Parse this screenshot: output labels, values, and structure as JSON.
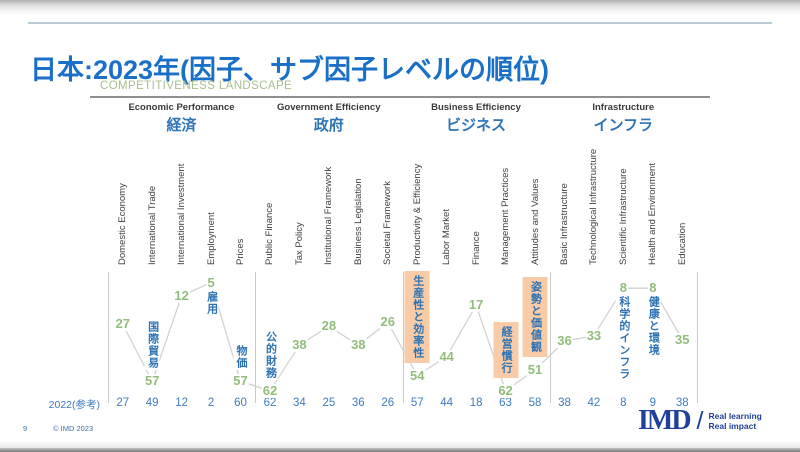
{
  "slide": {
    "title": "日本:2023年(因子、サブ因子レベルの順位)"
  },
  "chart": {
    "heading": "COMPETITIVENESS LANDSCAPE",
    "reference_row_label": "2022(参考)"
  },
  "footer": {
    "page_number": "9",
    "copyright": "© IMD 2023",
    "logo_text": "IMD",
    "logo_slash": "/",
    "tagline_line1": "Real learning",
    "tagline_line2": "Real impact"
  },
  "colors": {
    "title_blue": "#1A70C7",
    "annotation_blue": "#2E74B5",
    "value_green": "#92BD7A",
    "reference_blue": "#3E7CC1",
    "highlight_orange": "#F9CBA6",
    "line_gray": "#D2D2D2",
    "heading_green": "#A8C08C",
    "logo_blue": "#1F419B"
  },
  "chart_data": {
    "type": "line",
    "title": "COMPETITIVENESS LANDSCAPE",
    "y_axis": "world competitiveness ranking (lower = better); axis inverted, no ticks shown",
    "legend_position": "none",
    "grid": false,
    "series": [
      {
        "name": "2023",
        "style": "gray line with green rank labels at each point"
      },
      {
        "name": "2022(参考)",
        "style": "blue reference values listed in bottom row"
      }
    ],
    "sections": [
      {
        "name_en": "Economic Performance",
        "name_ja": "経済",
        "subfactors": [
          {
            "label": "Domestic Economy",
            "rank_2023": 27,
            "rank_2022": 27
          },
          {
            "label": "International Trade",
            "rank_2023": 57,
            "rank_2022": 49,
            "annotation_ja": "国際貿易",
            "annotation_pos": "above",
            "highlight": false
          },
          {
            "label": "International Investment",
            "rank_2023": 12,
            "rank_2022": 12
          },
          {
            "label": "Employment",
            "rank_2023": 5,
            "rank_2022": 2,
            "annotation_ja": "雇用",
            "annotation_pos": "below",
            "highlight": false
          },
          {
            "label": "Prices",
            "rank_2023": 57,
            "rank_2022": 60,
            "annotation_ja": "物価",
            "annotation_pos": "above",
            "highlight": false
          }
        ]
      },
      {
        "name_en": "Government Efficiency",
        "name_ja": "政府",
        "subfactors": [
          {
            "label": "Public Finance",
            "rank_2023": 62,
            "rank_2022": 62,
            "annotation_ja": "公的財務",
            "annotation_pos": "above",
            "highlight": false
          },
          {
            "label": "Tax Policy",
            "rank_2023": 38,
            "rank_2022": 34
          },
          {
            "label": "Institutional Framework",
            "rank_2023": 28,
            "rank_2022": 25
          },
          {
            "label": "Business Legislation",
            "rank_2023": 38,
            "rank_2022": 36
          },
          {
            "label": "Societal Framework",
            "rank_2023": 26,
            "rank_2022": 26
          }
        ]
      },
      {
        "name_en": "Business Efficiency",
        "name_ja": "ビジネス",
        "subfactors": [
          {
            "label": "Productivity & Efficiency",
            "rank_2023": 54,
            "rank_2022": 57,
            "annotation_ja": "生産性と効率性",
            "annotation_pos": "above",
            "highlight": true
          },
          {
            "label": "Labor Market",
            "rank_2023": 44,
            "rank_2022": 44
          },
          {
            "label": "Finance",
            "rank_2023": 17,
            "rank_2022": 18
          },
          {
            "label": "Management Practices",
            "rank_2023": 62,
            "rank_2022": 63,
            "annotation_ja": "経営慣行",
            "annotation_pos": "above",
            "highlight": true
          },
          {
            "label": "Attitudes and Values",
            "rank_2023": 51,
            "rank_2022": 58,
            "annotation_ja": "姿勢と価値観",
            "annotation_pos": "above",
            "highlight": true
          }
        ]
      },
      {
        "name_en": "Infrastructure",
        "name_ja": "インフラ",
        "subfactors": [
          {
            "label": "Basic Infrastructure",
            "rank_2023": 36,
            "rank_2022": 38
          },
          {
            "label": "Technological Infrastructure",
            "rank_2023": 33,
            "rank_2022": 42
          },
          {
            "label": "Scientific Infrastructure",
            "rank_2023": 8,
            "rank_2022": 8,
            "annotation_ja": "科学的インフラ",
            "annotation_pos": "below",
            "highlight": false
          },
          {
            "label": "Health and Environment",
            "rank_2023": 8,
            "rank_2022": 9,
            "annotation_ja": "健康と環境",
            "annotation_pos": "below",
            "highlight": false
          },
          {
            "label": "Education",
            "rank_2023": 35,
            "rank_2022": 38
          }
        ]
      }
    ]
  }
}
